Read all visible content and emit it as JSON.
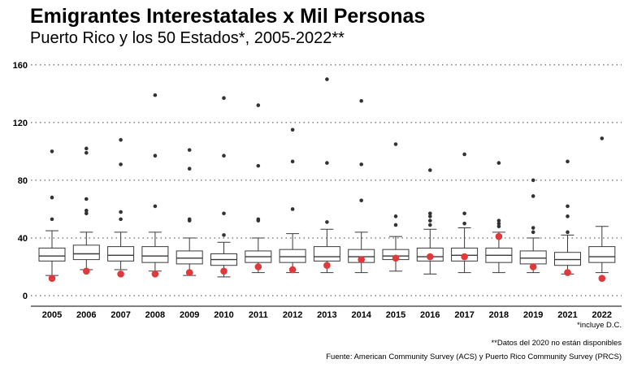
{
  "title": "Emigrantes Interestatales x Mil Personas",
  "subtitle": "Puerto Rico y los 50 Estados*, 2005-2022**",
  "notes": {
    "dc": "*incluye D.C.",
    "missing": "**Datos del 2020 no están disponibles",
    "source": "Fuente: American Community Survey (ACS) y Puerto Rico Community Survey (PRCS)"
  },
  "colors": {
    "puerto_rico_point": "#e0393b",
    "box_stroke": "#3a3a3a",
    "outlier": "#333333",
    "grid": "#444444"
  },
  "chart_data": {
    "type": "box",
    "ylim": [
      -5,
      162
    ],
    "y_ticks": [
      0,
      40,
      80,
      120,
      160
    ],
    "grid": "horizontal dotted",
    "categories": [
      "2005",
      "2006",
      "2007",
      "2008",
      "2009",
      "2010",
      "2011",
      "2012",
      "2013",
      "2014",
      "2015",
      "2016",
      "2017",
      "2018",
      "2019",
      "2021",
      "2022"
    ],
    "boxes": [
      {
        "year": "2005",
        "whisker_low": 14,
        "q1": 24,
        "median": 27.5,
        "q3": 33,
        "whisker_high": 45,
        "outliers": [
          53,
          68,
          100
        ],
        "puerto_rico": 12
      },
      {
        "year": "2006",
        "whisker_low": 18,
        "q1": 25,
        "median": 29,
        "q3": 35,
        "whisker_high": 44,
        "outliers": [
          57,
          59,
          67,
          99,
          102
        ],
        "puerto_rico": 17
      },
      {
        "year": "2007",
        "whisker_low": 18,
        "q1": 24,
        "median": 28,
        "q3": 34,
        "whisker_high": 44,
        "outliers": [
          53,
          58,
          91,
          108
        ],
        "puerto_rico": 15
      },
      {
        "year": "2008",
        "whisker_low": 17,
        "q1": 23,
        "median": 27.5,
        "q3": 34,
        "whisker_high": 44,
        "outliers": [
          62,
          97,
          139
        ],
        "puerto_rico": 15
      },
      {
        "year": "2009",
        "whisker_low": 14,
        "q1": 22,
        "median": 26,
        "q3": 31,
        "whisker_high": 40,
        "outliers": [
          52,
          53,
          88,
          101
        ],
        "puerto_rico": 16
      },
      {
        "year": "2010",
        "whisker_low": 13,
        "q1": 21,
        "median": 25,
        "q3": 29,
        "whisker_high": 37,
        "outliers": [
          42,
          57,
          97,
          137
        ],
        "puerto_rico": 17
      },
      {
        "year": "2011",
        "whisker_low": 16,
        "q1": 23,
        "median": 27,
        "q3": 31,
        "whisker_high": 40,
        "outliers": [
          52,
          53,
          90,
          132
        ],
        "puerto_rico": 20
      },
      {
        "year": "2012",
        "whisker_low": 16,
        "q1": 23,
        "median": 27,
        "q3": 32,
        "whisker_high": 43,
        "outliers": [
          60,
          93,
          115
        ],
        "puerto_rico": 18
      },
      {
        "year": "2013",
        "whisker_low": 16,
        "q1": 24,
        "median": 27,
        "q3": 34,
        "whisker_high": 46,
        "outliers": [
          51,
          92,
          150
        ],
        "puerto_rico": 21
      },
      {
        "year": "2014",
        "whisker_low": 16,
        "q1": 23,
        "median": 27,
        "q3": 32,
        "whisker_high": 44,
        "outliers": [
          66,
          91,
          135
        ],
        "puerto_rico": 25
      },
      {
        "year": "2015",
        "whisker_low": 17,
        "q1": 25,
        "median": 27.5,
        "q3": 32,
        "whisker_high": 41,
        "outliers": [
          49,
          55,
          105
        ],
        "puerto_rico": 26
      },
      {
        "year": "2016",
        "whisker_low": 15,
        "q1": 24,
        "median": 27,
        "q3": 33,
        "whisker_high": 46,
        "outliers": [
          49,
          52,
          55,
          57,
          87
        ],
        "puerto_rico": 27
      },
      {
        "year": "2017",
        "whisker_low": 16,
        "q1": 24,
        "median": 28,
        "q3": 33,
        "whisker_high": 47,
        "outliers": [
          50,
          57,
          98
        ],
        "puerto_rico": 27
      },
      {
        "year": "2018",
        "whisker_low": 16,
        "q1": 23,
        "median": 28,
        "q3": 33,
        "whisker_high": 44,
        "outliers": [
          48,
          50,
          52,
          92
        ],
        "puerto_rico": 41
      },
      {
        "year": "2019",
        "whisker_low": 16,
        "q1": 22,
        "median": 26,
        "q3": 31,
        "whisker_high": 40,
        "outliers": [
          44,
          47,
          69,
          80
        ],
        "puerto_rico": 20
      },
      {
        "year": "2021",
        "whisker_low": 15,
        "q1": 21,
        "median": 25,
        "q3": 30,
        "whisker_high": 42,
        "outliers": [
          44,
          55,
          62,
          93
        ],
        "puerto_rico": 16
      },
      {
        "year": "2022",
        "whisker_low": 16,
        "q1": 23,
        "median": 27,
        "q3": 34,
        "whisker_high": 48,
        "outliers": [
          109
        ],
        "puerto_rico": 12
      }
    ]
  }
}
